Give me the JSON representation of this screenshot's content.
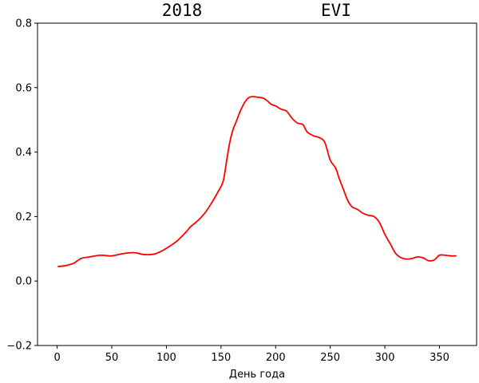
{
  "chart_data": {
    "type": "line",
    "title_left": "2018",
    "title_right": "EVI",
    "xlabel": "День года",
    "ylabel": "",
    "xlim": [
      -18,
      384
    ],
    "ylim": [
      -0.2,
      0.8
    ],
    "x_ticks": [
      0,
      50,
      100,
      150,
      200,
      250,
      300,
      350
    ],
    "y_ticks": [
      -0.2,
      0.0,
      0.2,
      0.4,
      0.6,
      0.8
    ],
    "x_tick_labels": [
      "0",
      "50",
      "100",
      "150",
      "200",
      "250",
      "300",
      "350"
    ],
    "y_tick_labels": [
      "−0.2",
      "0.0",
      "0.2",
      "0.4",
      "0.6",
      "0.8"
    ],
    "grid": false,
    "legend": "none",
    "series": [
      {
        "color": "#ff0000",
        "x": [
          1,
          8,
          15,
          22,
          30,
          40,
          50,
          60,
          70,
          80,
          88,
          95,
          103,
          110,
          118,
          122,
          128,
          135,
          141,
          147,
          152,
          155,
          158,
          161,
          164,
          168,
          172,
          176,
          180,
          184,
          188,
          192,
          196,
          200,
          205,
          210,
          215,
          220,
          225,
          229,
          235,
          240,
          245,
          250,
          255,
          258,
          262,
          266,
          270,
          275,
          280,
          285,
          290,
          295,
          300,
          305,
          310,
          315,
          320,
          325,
          330,
          335,
          340,
          345,
          350,
          355,
          360,
          365
        ],
        "y": [
          0.045,
          0.048,
          0.055,
          0.07,
          0.075,
          0.08,
          0.078,
          0.085,
          0.088,
          0.082,
          0.083,
          0.092,
          0.108,
          0.125,
          0.152,
          0.168,
          0.185,
          0.21,
          0.24,
          0.275,
          0.31,
          0.37,
          0.43,
          0.47,
          0.495,
          0.53,
          0.556,
          0.57,
          0.572,
          0.57,
          0.568,
          0.56,
          0.548,
          0.543,
          0.533,
          0.527,
          0.505,
          0.49,
          0.485,
          0.462,
          0.45,
          0.445,
          0.43,
          0.375,
          0.35,
          0.32,
          0.285,
          0.25,
          0.23,
          0.222,
          0.21,
          0.204,
          0.2,
          0.182,
          0.145,
          0.115,
          0.085,
          0.072,
          0.068,
          0.07,
          0.075,
          0.072,
          0.063,
          0.065,
          0.08,
          0.08,
          0.078,
          0.078
        ]
      }
    ]
  }
}
